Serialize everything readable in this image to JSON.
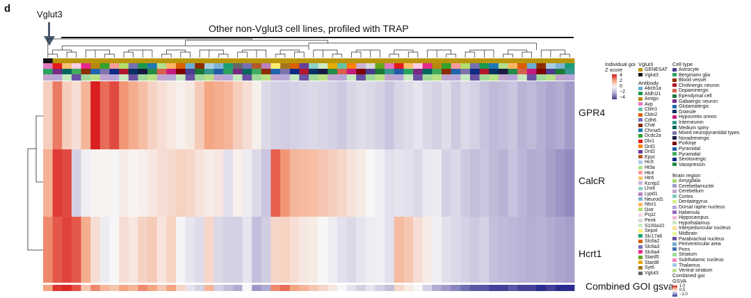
{
  "panel_label": "d",
  "vglut3_label": "Vglut3",
  "chart_data": {
    "type": "heatmap",
    "title": "Other non-Vglut3 cell lines, profiled with TRAP",
    "rows": [
      "GPR4",
      "CalcR",
      "Hcrt1"
    ],
    "combined_label": "Combined GOI gsva",
    "n_columns": 56,
    "values": {
      "GPR4": [
        1.0,
        2.6,
        1.0,
        0.6,
        1.6,
        3.9,
        2.8,
        3.3,
        2.2,
        1.8,
        1.4,
        0.9,
        0.6,
        0.4,
        0.2,
        0.4,
        1.1,
        2.0,
        1.8,
        1.6,
        1.0,
        0.6,
        0.2,
        -0.8,
        -1.0,
        -1.1,
        -1.0,
        -0.9,
        -0.8,
        -0.9,
        -1.0,
        -1.2,
        -0.9,
        -0.7,
        -0.8,
        -1.0,
        -1.3,
        -0.9,
        -0.7,
        -0.5,
        -0.8,
        -1.0,
        -0.7,
        -1.2,
        -0.8,
        -1.0,
        -1.4,
        -1.6,
        -1.5,
        -1.3,
        -1.8,
        -1.6,
        -1.9,
        -2.1,
        -2.0,
        -2.3
      ],
      "CalcR": [
        1.7,
        3.5,
        3.3,
        -1.0,
        -0.2,
        0.1,
        0.1,
        -0.1,
        0.3,
        0.1,
        0.2,
        0.4,
        0.6,
        0.7,
        0.9,
        0.8,
        0.5,
        0.3,
        0.4,
        -0.6,
        0.2,
        -0.3,
        -0.8,
        -1.3,
        3.0,
        2.2,
        1.6,
        1.5,
        1.4,
        1.2,
        1.0,
        0.8,
        0.5,
        0.3,
        0.0,
        -0.2,
        -0.6,
        -0.5,
        -0.6,
        -0.8,
        -0.4,
        -0.3,
        -1.0,
        -0.8,
        -1.2,
        -1.5,
        -1.3,
        -1.6,
        -1.8,
        -1.4,
        -1.7,
        -2.0,
        -1.9,
        -2.2,
        -2.4,
        -2.6
      ],
      "Hcrt1": [
        2.4,
        3.1,
        3.4,
        3.1,
        1.8,
        0.6,
        -0.3,
        0.0,
        0.6,
        0.4,
        0.9,
        1.1,
        0.5,
        0.9,
        -0.1,
        -0.5,
        -0.7,
        0.8,
        -0.8,
        -1.0,
        -1.0,
        -0.5,
        -1.5,
        -1.1,
        0.8,
        0.9,
        0.6,
        0.4,
        0.3,
        0.0,
        -0.3,
        -0.6,
        -0.8,
        -0.5,
        -0.3,
        -0.2,
        -0.6,
        1.5,
        1.2,
        0.6,
        0.3,
        -0.2,
        -0.6,
        -0.8,
        -1.0,
        -1.2,
        -1.0,
        -1.5,
        -1.6,
        -1.7,
        -1.8,
        -1.9,
        -1.8,
        -2.0,
        -2.1,
        -2.2
      ],
      "combined": [
        0.5,
        0.9,
        0.95,
        0.8,
        0.3,
        0.6,
        0.4,
        0.3,
        0.5,
        0.4,
        0.6,
        0.5,
        0.3,
        0.5,
        0.2,
        -0.1,
        -0.2,
        0.4,
        -0.2,
        -0.3,
        -0.4,
        0.0,
        -0.5,
        -0.4,
        0.6,
        0.7,
        0.5,
        0.4,
        0.3,
        0.2,
        0.1,
        0.0,
        -0.1,
        -0.2,
        -0.1,
        -0.2,
        -0.3,
        0.2,
        0.1,
        0.0,
        -0.2,
        -0.4,
        -0.5,
        -0.6,
        -0.7,
        -0.8,
        -0.8,
        -0.9,
        -0.9,
        -0.8,
        -0.9,
        -0.9,
        -1.0,
        -0.9,
        -1.0,
        -1.0
      ]
    },
    "zscore_range": [
      -4,
      4
    ],
    "gsva_range": [
      -1.0,
      1.0
    ]
  },
  "legend": {
    "zscore": {
      "title": "Individual goi Z score",
      "ticks": [
        "4",
        "2",
        "0",
        "−2",
        "−4"
      ],
      "colors": [
        "#d7191c",
        "#f4a582",
        "#f7f7f7",
        "#b2abd2",
        "#4b3b8f"
      ]
    },
    "gsva": {
      "title": "Combined goi GSVA",
      "ticks": [
        "1.0",
        "0.5",
        "0",
        "−0.5",
        "−1.0"
      ],
      "colors": [
        "#d7191c",
        "#f4a582",
        "#f7f7f7",
        "#9e9ac8",
        "#2b2c8f"
      ]
    },
    "vglut3": {
      "title": "Vglut3",
      "items": [
        {
          "label": "GENESAT",
          "color": "#b8960c"
        },
        {
          "label": "Vglut3",
          "color": "#111111"
        }
      ]
    },
    "antibody": {
      "title": "Antibody",
      "items": [
        {
          "label": "Abcb1a",
          "color": "#6baed6"
        },
        {
          "label": "Aldh1l1",
          "color": "#1a9850"
        },
        {
          "label": "Amigo",
          "color": "#b8860b"
        },
        {
          "label": "Avp",
          "color": "#e377c2"
        },
        {
          "label": "Cbln1",
          "color": "#66c2a5"
        },
        {
          "label": "Cbln2",
          "color": "#d95f02"
        },
        {
          "label": "Cdh6",
          "color": "#7570b3"
        },
        {
          "label": "Chat",
          "color": "#8c2d04"
        },
        {
          "label": "Chrna5",
          "color": "#1f78b4"
        },
        {
          "label": "Dcdc2a",
          "color": "#33a02c"
        },
        {
          "label": "Dlx1",
          "color": "#e31a1c"
        },
        {
          "label": "Drd1",
          "color": "#ff7f00"
        },
        {
          "label": "Drd2",
          "color": "#6a3d9a"
        },
        {
          "label": "Epyc",
          "color": "#b15928"
        },
        {
          "label": "Hcrt",
          "color": "#a6cee3"
        },
        {
          "label": "Ht3a",
          "color": "#b2df8a"
        },
        {
          "label": "Htr4",
          "color": "#fb9a99"
        },
        {
          "label": "Htr6",
          "color": "#fdbf6f"
        },
        {
          "label": "Kcnip2",
          "color": "#cab2d6"
        },
        {
          "label": "Lhx6",
          "color": "#8dd3c7"
        },
        {
          "label": "Lypd1",
          "color": "#bc80bd"
        },
        {
          "label": "Neurod1",
          "color": "#80b1d3"
        },
        {
          "label": "Ntsr1",
          "color": "#fdb462"
        },
        {
          "label": "Oxtr",
          "color": "#b3de69"
        },
        {
          "label": "Pcp2",
          "color": "#fccde5"
        },
        {
          "label": "Penk",
          "color": "#d9d9d9"
        },
        {
          "label": "S100a10",
          "color": "#ccebc5"
        },
        {
          "label": "Sept4",
          "color": "#ffed6f"
        },
        {
          "label": "Slc17a6",
          "color": "#1b9e77"
        },
        {
          "label": "Slc6a2",
          "color": "#d95f02"
        },
        {
          "label": "Slc6a3",
          "color": "#7570b3"
        },
        {
          "label": "Slc6a4",
          "color": "#e7298a"
        },
        {
          "label": "Stard5",
          "color": "#66a61e"
        },
        {
          "label": "Stard8",
          "color": "#e6ab02"
        },
        {
          "label": "Syt6",
          "color": "#a6761d"
        },
        {
          "label": "Vglut3",
          "color": "#666666"
        }
      ]
    },
    "cell_type": {
      "title": "Cell type",
      "items": [
        {
          "label": "Astrocyte",
          "color": "#4b3b8f"
        },
        {
          "label": "Bergmann glia",
          "color": "#2ca25f"
        },
        {
          "label": "Blood vessel",
          "color": "#8c2d04"
        },
        {
          "label": "Cholinergic neuron",
          "color": "#b2182b"
        },
        {
          "label": "Dopaminergic",
          "color": "#d6604d"
        },
        {
          "label": "Ependymal cell",
          "color": "#1b7837"
        },
        {
          "label": "Gabaergic neuron",
          "color": "#762a83"
        },
        {
          "label": "Glutamatergic",
          "color": "#2166ac"
        },
        {
          "label": "Granule",
          "color": "#053061"
        },
        {
          "label": "Hypocretin orexin",
          "color": "#c51b7d"
        },
        {
          "label": "Interneuron",
          "color": "#35978f"
        },
        {
          "label": "Medium spiny",
          "color": "#01665e"
        },
        {
          "label": "Mixed neuropyramidal types",
          "color": "#8073ac"
        },
        {
          "label": "Noradrenergic",
          "color": "#1a1a40"
        },
        {
          "label": "Purkinje",
          "color": "#7f0000"
        },
        {
          "label": "Pyramidal",
          "color": "#225ea8"
        },
        {
          "label": "Pyramidal",
          "color": "#41ab5d"
        },
        {
          "label": "Serotonergic",
          "color": "#0c2c84"
        },
        {
          "label": "Vasopressin",
          "color": "#238b45"
        }
      ]
    },
    "brain_region": {
      "title": "Brain region",
      "items": [
        {
          "label": "Amygdala",
          "color": "#a6d96a"
        },
        {
          "label": "Cerebellarnuclei",
          "color": "#9e9ac8"
        },
        {
          "label": "Cerebellum",
          "color": "#c2a5cf"
        },
        {
          "label": "Cortex",
          "color": "#7fcdbb"
        },
        {
          "label": "Dentategyrus",
          "color": "#d9ef8b"
        },
        {
          "label": "Dorsal raphe nucleus",
          "color": "#b7a7d9"
        },
        {
          "label": "Habenula",
          "color": "#9467bd"
        },
        {
          "label": "Hippocampus",
          "color": "#f1b6da"
        },
        {
          "label": "Hypothalamus",
          "color": "#c7e9c0"
        },
        {
          "label": "Interpeduncular nucleus",
          "color": "#fee08b"
        },
        {
          "label": "Midbrain",
          "color": "#e6f598"
        },
        {
          "label": "Parabrachial nucleus",
          "color": "#6a51a3"
        },
        {
          "label": "Periventricular area",
          "color": "#74add1"
        },
        {
          "label": "Pons",
          "color": "#4575b4"
        },
        {
          "label": "Striatum",
          "color": "#a1d99b"
        },
        {
          "label": "Subthalamic nucleus",
          "color": "#f781bf"
        },
        {
          "label": "Thalamus",
          "color": "#9ecae1"
        },
        {
          "label": "Ventral striatum",
          "color": "#b8e186"
        }
      ]
    }
  }
}
